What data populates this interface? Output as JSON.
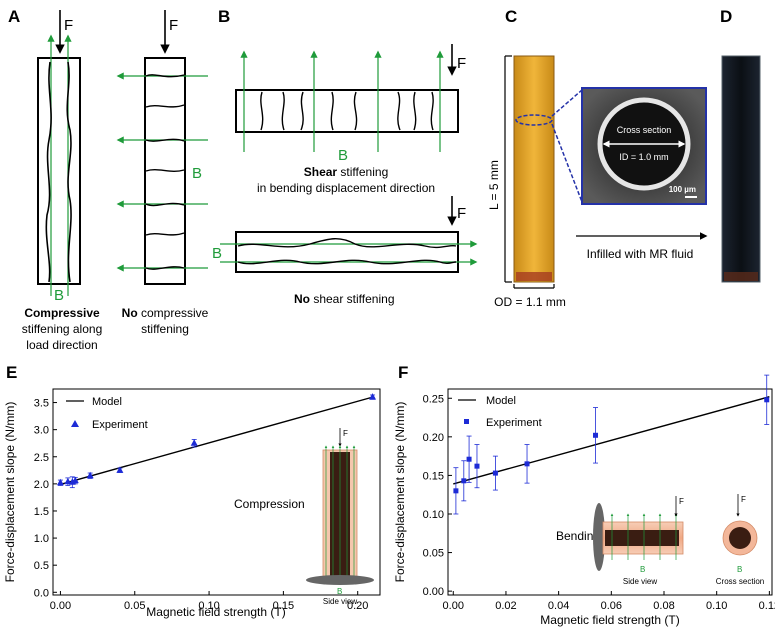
{
  "panels": {
    "A": {
      "letter": "A",
      "force": "F",
      "field": "B",
      "left_caption_bold": "Compressive",
      "left_caption_rest_1": "stiffening along",
      "left_caption_rest_2": "load direction",
      "right_caption_bold": "No",
      "right_caption_rest_1": " compressive",
      "right_caption_rest_2": "stiffening"
    },
    "B": {
      "letter": "B",
      "force": "F",
      "field": "B",
      "top_caption_bold": "Shear",
      "top_caption_rest_1": " stiffening",
      "top_caption_rest_2": "in bending displacement direction",
      "bottom_caption_bold": "No",
      "bottom_caption_rest": " shear stiffening"
    },
    "C": {
      "letter": "C",
      "length": "L = 5 mm",
      "outer_diameter": "OD = 1.1 mm",
      "inset_title": "Cross section",
      "inset_id": "ID = 1.0 mm",
      "scale_bar": "100 µm",
      "arrow_text": "Infilled with MR fluid"
    },
    "D": {
      "letter": "D"
    },
    "E": {
      "letter": "E",
      "legend_model": "Model",
      "legend_experiment": "Experiment",
      "inset_label": "Compression",
      "inset_force": "F",
      "inset_field": "B",
      "inset_view": "Side view"
    },
    "F": {
      "letter": "F",
      "legend_model": "Model",
      "legend_experiment": "Experiment",
      "inset_label": "Bending",
      "inset_force_1": "F",
      "inset_force_2": "F",
      "inset_field_1": "B",
      "inset_field_2": "B",
      "inset_view_1": "Side view",
      "inset_view_2": "Cross section"
    }
  },
  "colors": {
    "field_green": "#1f9b3a",
    "data_blue": "#1d2bd6",
    "tube_yellow": "#e0a325",
    "inset_blue": "#2432a8",
    "inset_bg": "#3a3a3a",
    "pink": "#f3b79a"
  },
  "chart_data": [
    {
      "type": "scatter",
      "panel": "E",
      "xlabel": "Magnetic field strength (T)",
      "ylabel": "Force-displacement slope (N/mm)",
      "xlim": [
        -0.005,
        0.215
      ],
      "ylim": [
        -0.05,
        3.75
      ],
      "xticks": [
        0.0,
        0.05,
        0.1,
        0.15,
        0.2
      ],
      "xtick_labels": [
        "0.00",
        "0.05",
        "0.10",
        "0.15",
        "0.20"
      ],
      "yticks": [
        0.0,
        0.5,
        1.0,
        1.5,
        2.0,
        2.5,
        3.0,
        3.5
      ],
      "ytick_labels": [
        "0.0",
        "0.5",
        "1.0",
        "1.5",
        "2.0",
        "2.5",
        "3.0",
        "3.5"
      ],
      "legend": "top-left",
      "marker": "triangle",
      "series": [
        {
          "name": "Experiment",
          "x": [
            0.0,
            0.005,
            0.008,
            0.01,
            0.02,
            0.04,
            0.09,
            0.21
          ],
          "y": [
            2.02,
            2.04,
            2.03,
            2.06,
            2.15,
            2.25,
            2.75,
            3.6
          ],
          "err": [
            0.05,
            0.07,
            0.1,
            0.06,
            0.05,
            0.04,
            0.07,
            0.04
          ]
        }
      ],
      "model": {
        "name": "Model",
        "x": [
          0.0,
          0.21
        ],
        "y": [
          1.99,
          3.6
        ]
      }
    },
    {
      "type": "scatter",
      "panel": "F",
      "xlabel": "Magnetic field strength (T)",
      "ylabel": "Force-displacement slope (N/mm)",
      "xlim": [
        -0.002,
        0.121
      ],
      "ylim": [
        -0.005,
        0.262
      ],
      "xticks": [
        0.0,
        0.02,
        0.04,
        0.06,
        0.08,
        0.1,
        0.12
      ],
      "xtick_labels": [
        "0.00",
        "0.02",
        "0.04",
        "0.06",
        "0.08",
        "0.10",
        "0.12"
      ],
      "yticks": [
        0.0,
        0.05,
        0.1,
        0.15,
        0.2,
        0.25
      ],
      "ytick_labels": [
        "0.00",
        "0.05",
        "0.10",
        "0.15",
        "0.20",
        "0.25"
      ],
      "legend": "top-left",
      "marker": "square",
      "series": [
        {
          "name": "Experiment",
          "x": [
            0.001,
            0.004,
            0.006,
            0.009,
            0.016,
            0.028,
            0.054,
            0.119
          ],
          "y": [
            0.13,
            0.143,
            0.171,
            0.162,
            0.153,
            0.165,
            0.202,
            0.248
          ],
          "err": [
            0.03,
            0.026,
            0.03,
            0.028,
            0.022,
            0.025,
            0.036,
            0.032
          ]
        }
      ],
      "model": {
        "name": "Model",
        "x": [
          0.0,
          0.12
        ],
        "y": [
          0.139,
          0.252
        ]
      }
    }
  ]
}
